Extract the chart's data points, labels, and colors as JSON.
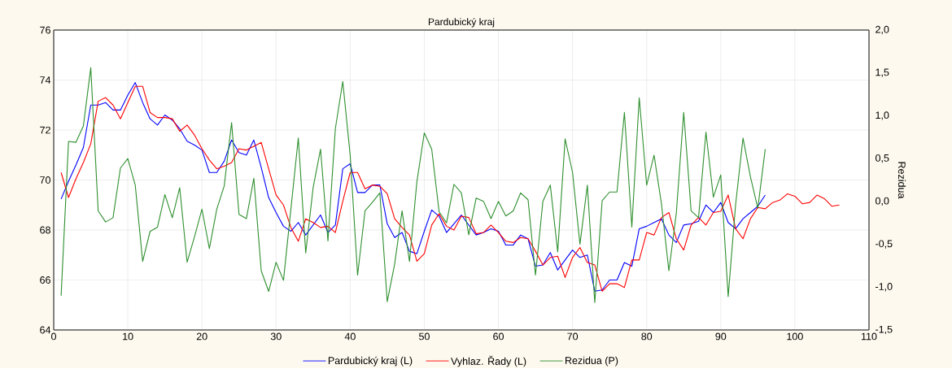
{
  "chart_data": {
    "type": "line",
    "title": "Pardubický kraj",
    "y2label": "Rezidua",
    "xlim": [
      0,
      110
    ],
    "xticks": [
      0,
      10,
      20,
      30,
      40,
      50,
      60,
      70,
      80,
      90,
      100,
      110
    ],
    "ylim": [
      64,
      76
    ],
    "yticks": [
      64,
      66,
      68,
      70,
      72,
      74,
      76
    ],
    "y2lim": [
      -1.5,
      2.0
    ],
    "y2ticks": [
      {
        "value": -1.5,
        "label": "-1,5"
      },
      {
        "value": -1.0,
        "label": "-1,0"
      },
      {
        "value": -0.5,
        "label": "-0,5"
      },
      {
        "value": 0.0,
        "label": "0,0"
      },
      {
        "value": 0.5,
        "label": "0,5"
      },
      {
        "value": 1.0,
        "label": "1,0"
      },
      {
        "value": 1.5,
        "label": "1,5"
      },
      {
        "value": 2.0,
        "label": "2,0"
      }
    ],
    "grid": true,
    "legend": "bottom",
    "series": [
      {
        "name": "Pardubický kraj (L)",
        "color": "#0000ff",
        "x": [
          1,
          2,
          3,
          4,
          5,
          6,
          7,
          8,
          9,
          10,
          11,
          12,
          13,
          14,
          15,
          16,
          17,
          18,
          19,
          20,
          21,
          22,
          23,
          24,
          25,
          26,
          27,
          28,
          29,
          30,
          31,
          32,
          33,
          34,
          35,
          36,
          37,
          38,
          39,
          40,
          41,
          42,
          43,
          44,
          45,
          46,
          47,
          48,
          49,
          50,
          51,
          52,
          53,
          54,
          55,
          56,
          57,
          58,
          59,
          60,
          61,
          62,
          63,
          64,
          65,
          66,
          67,
          68,
          69,
          70,
          71,
          72,
          73,
          74,
          75,
          76,
          77,
          78,
          79,
          80,
          81,
          82,
          83,
          84,
          85,
          86,
          87,
          88,
          89,
          90,
          91,
          92,
          93,
          94,
          95,
          96
        ],
        "values": [
          69.24,
          69.95,
          70.6,
          71.3,
          73.0,
          73.0,
          73.1,
          72.8,
          72.8,
          73.4,
          73.9,
          73.1,
          72.45,
          72.2,
          72.6,
          72.4,
          72.05,
          71.55,
          71.4,
          71.2,
          70.3,
          70.3,
          70.75,
          71.6,
          71.1,
          71.0,
          71.6,
          70.5,
          69.3,
          68.7,
          68.15,
          67.95,
          68.3,
          67.8,
          68.2,
          68.6,
          67.9,
          68.2,
          70.45,
          70.65,
          69.5,
          69.5,
          69.8,
          69.8,
          68.25,
          67.7,
          67.9,
          67.15,
          67.05,
          67.95,
          68.8,
          68.55,
          67.9,
          68.25,
          68.6,
          68.2,
          67.8,
          67.9,
          68.05,
          67.95,
          67.4,
          67.4,
          67.8,
          67.65,
          66.55,
          66.6,
          67.1,
          66.4,
          66.8,
          67.2,
          66.9,
          67.0,
          65.55,
          65.6,
          66.0,
          66.0,
          66.7,
          66.55,
          68.05,
          68.15,
          68.3,
          68.45,
          67.8,
          67.5,
          68.2,
          68.25,
          68.35,
          69.0,
          68.7,
          69.1,
          68.3,
          68.05,
          68.45,
          68.7,
          68.95,
          69.4
        ]
      },
      {
        "name": "Vyhlaz. Řady (L)",
        "color": "#ff0000",
        "x": [
          1,
          2,
          3,
          4,
          5,
          6,
          7,
          8,
          9,
          10,
          11,
          12,
          13,
          14,
          15,
          16,
          17,
          18,
          19,
          20,
          21,
          22,
          23,
          24,
          25,
          26,
          27,
          28,
          29,
          30,
          31,
          32,
          33,
          34,
          35,
          36,
          37,
          38,
          39,
          40,
          41,
          42,
          43,
          44,
          45,
          46,
          47,
          48,
          49,
          50,
          51,
          52,
          53,
          54,
          55,
          56,
          57,
          58,
          59,
          60,
          61,
          62,
          63,
          64,
          65,
          66,
          67,
          68,
          69,
          70,
          71,
          72,
          73,
          74,
          75,
          76,
          77,
          78,
          79,
          80,
          81,
          82,
          83,
          84,
          85,
          86,
          87,
          88,
          89,
          90,
          91,
          92,
          93,
          94,
          95,
          96,
          97,
          98,
          99,
          100,
          101,
          102,
          103,
          104,
          105,
          106
        ],
        "values": [
          70.3,
          69.3,
          70.05,
          70.7,
          71.45,
          73.15,
          73.3,
          73.0,
          72.45,
          73.1,
          73.75,
          73.75,
          72.7,
          72.5,
          72.5,
          72.45,
          71.95,
          72.2,
          71.8,
          71.25,
          70.8,
          70.45,
          70.55,
          70.7,
          71.25,
          71.2,
          71.35,
          71.5,
          70.45,
          69.4,
          69.0,
          68.1,
          67.55,
          68.45,
          68.3,
          68.1,
          68.15,
          67.9,
          69.15,
          70.3,
          70.3,
          69.65,
          69.8,
          69.75,
          69.45,
          68.45,
          68.1,
          67.8,
          66.75,
          67.05,
          68.2,
          68.65,
          68.15,
          68.0,
          68.55,
          68.5,
          67.85,
          67.9,
          68.2,
          67.9,
          67.55,
          67.5,
          67.7,
          67.65,
          67.15,
          66.6,
          66.9,
          66.95,
          66.1,
          66.9,
          67.3,
          66.7,
          66.6,
          65.55,
          65.85,
          65.85,
          65.7,
          66.8,
          66.8,
          67.9,
          67.8,
          68.5,
          68.7,
          67.65,
          67.2,
          68.2,
          68.5,
          68.2,
          68.7,
          68.75,
          69.4,
          68.05,
          67.65,
          68.45,
          68.9,
          68.85,
          69.1,
          69.2,
          69.45,
          69.35,
          69.05,
          69.1,
          69.4,
          69.25,
          68.95,
          69.0
        ]
      },
      {
        "name": "Rezidua (P)",
        "color": "#2f8f2f",
        "axis": "y2",
        "x": [
          1,
          2,
          3,
          4,
          5,
          6,
          7,
          8,
          9,
          10,
          11,
          12,
          13,
          14,
          15,
          16,
          17,
          18,
          19,
          20,
          21,
          22,
          23,
          24,
          25,
          26,
          27,
          28,
          29,
          30,
          31,
          32,
          33,
          34,
          35,
          36,
          37,
          38,
          39,
          40,
          41,
          42,
          43,
          44,
          45,
          46,
          47,
          48,
          49,
          50,
          51,
          52,
          53,
          54,
          55,
          56,
          57,
          58,
          59,
          60,
          61,
          62,
          63,
          64,
          65,
          66,
          67,
          68,
          69,
          70,
          71,
          72,
          73,
          74,
          75,
          76,
          77,
          78,
          79,
          80,
          81,
          82,
          83,
          84,
          85,
          86,
          87,
          88,
          89,
          90,
          91,
          92,
          93,
          94,
          95,
          96
        ],
        "values": [
          -1.1,
          0.7,
          0.69,
          0.88,
          1.56,
          -0.11,
          -0.24,
          -0.19,
          0.39,
          0.5,
          0.19,
          -0.7,
          -0.35,
          -0.3,
          0.08,
          -0.19,
          0.16,
          -0.71,
          -0.41,
          -0.09,
          -0.55,
          -0.09,
          0.18,
          0.92,
          -0.15,
          -0.2,
          0.27,
          -0.81,
          -1.05,
          -0.71,
          -0.92,
          -0.09,
          0.74,
          -0.6,
          0.16,
          0.61,
          -0.46,
          0.85,
          1.4,
          0.54,
          -0.86,
          -0.11,
          -0.01,
          0.1,
          -1.17,
          -0.73,
          -0.11,
          -0.7,
          0.23,
          0.8,
          0.61,
          -0.12,
          -0.25,
          0.2,
          0.1,
          -0.39,
          0.04,
          0.0,
          -0.2,
          0.0,
          -0.17,
          -0.11,
          0.1,
          0.02,
          -0.86,
          0.0,
          0.19,
          -0.59,
          0.73,
          0.34,
          -0.5,
          0.19,
          -1.18,
          0.01,
          0.11,
          0.11,
          1.04,
          -0.3,
          1.21,
          0.19,
          0.54,
          -0.03,
          -0.81,
          -0.14,
          1.04,
          -0.11,
          -0.19,
          0.81,
          0.05,
          0.31,
          -1.11,
          -0.04,
          0.74,
          0.29,
          -0.08,
          0.61
        ]
      }
    ]
  }
}
